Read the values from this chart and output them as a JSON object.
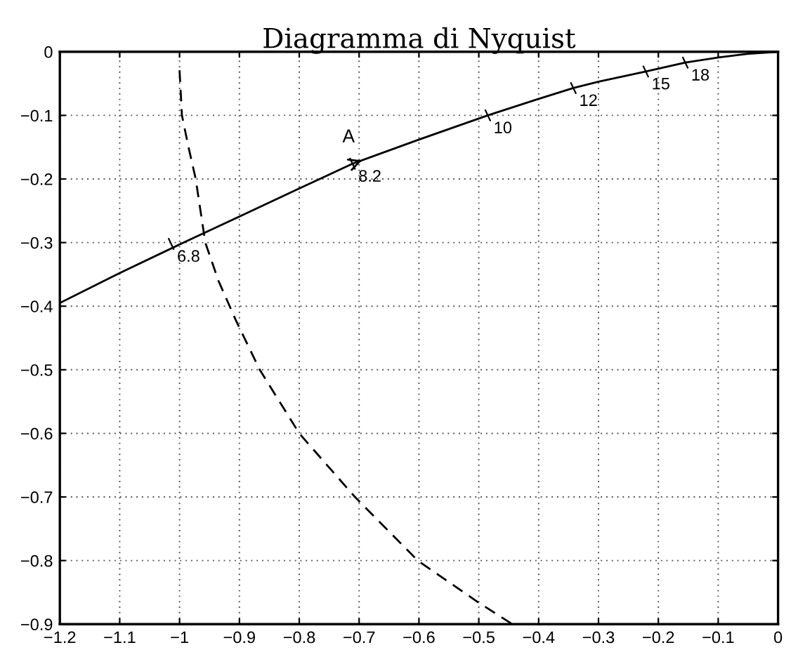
{
  "chart_data": {
    "type": "line",
    "title": "Diagramma di Nyquist",
    "series": [
      {
        "color": "#000000",
        "line_style": "solid",
        "x": [
          -1.2,
          -1.1,
          -1.0,
          -0.9,
          -0.8,
          -0.711,
          -0.6,
          -0.485,
          -0.4,
          -0.342,
          -0.3,
          -0.221,
          -0.155,
          -0.1,
          -0.05,
          0
        ],
        "values": [
          -0.395,
          -0.348,
          -0.303,
          -0.259,
          -0.215,
          -0.176,
          -0.138,
          -0.1,
          -0.074,
          -0.057,
          -0.047,
          -0.031,
          -0.017,
          -0.009,
          -0.003,
          0
        ]
      },
      {
        "color": "#000000",
        "line_style": "dashed",
        "x": [
          -1.0,
          -0.996,
          -0.985,
          -0.973,
          -0.957,
          -0.935,
          -0.906,
          -0.866,
          -0.8,
          -0.707,
          -0.602,
          -0.502,
          -0.444
        ],
        "values": [
          -0.029,
          -0.1,
          -0.15,
          -0.2,
          -0.3,
          -0.36,
          -0.422,
          -0.5,
          -0.6,
          -0.7,
          -0.8,
          -0.865,
          -0.9
        ]
      }
    ],
    "annotations": [
      {
        "text": "6.8",
        "x": -1.014,
        "y": -0.302
      },
      {
        "text": "A",
        "x": -0.711,
        "y": -0.176
      },
      {
        "text": "8.2",
        "x": -0.711,
        "y": -0.176
      },
      {
        "text": "10",
        "x": -0.485,
        "y": -0.1
      },
      {
        "text": "12",
        "x": -0.342,
        "y": -0.057
      },
      {
        "text": "15",
        "x": -0.221,
        "y": -0.031
      },
      {
        "text": "18",
        "x": -0.155,
        "y": -0.017
      }
    ],
    "xlim": [
      -1.2,
      0
    ],
    "ylim": [
      -0.9,
      0
    ],
    "xticks": [
      -1.2,
      -1.1,
      -1,
      -0.9,
      -0.8,
      -0.7,
      -0.6,
      -0.5,
      -0.4,
      -0.3,
      -0.2,
      -0.1,
      0
    ],
    "yticks": [
      -0.9,
      -0.8,
      -0.7,
      -0.6,
      -0.5,
      -0.4,
      -0.3,
      -0.2,
      -0.1,
      0
    ],
    "grid": true,
    "legend": false,
    "marker": "none"
  }
}
